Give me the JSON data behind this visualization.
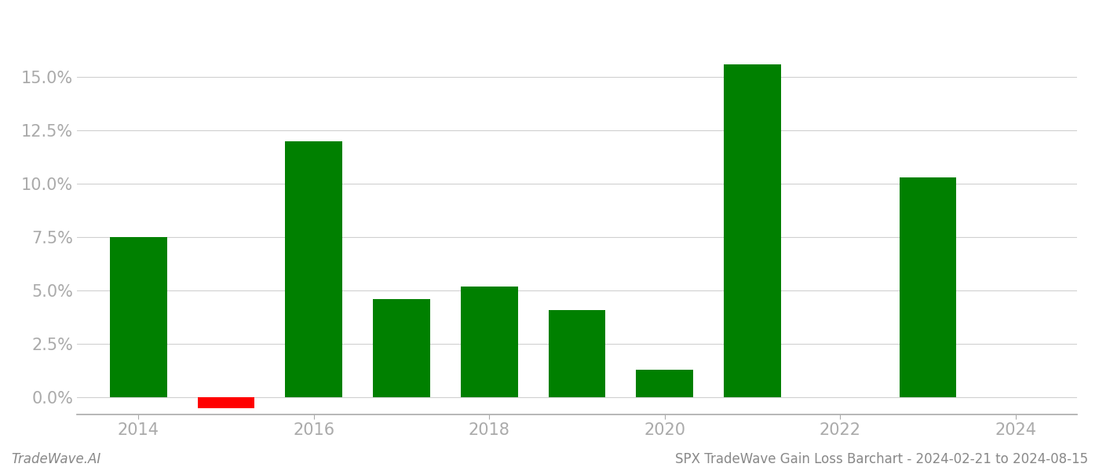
{
  "years": [
    2014,
    2015,
    2016,
    2017,
    2018,
    2019,
    2020,
    2021,
    2022,
    2023,
    2024
  ],
  "values": [
    0.075,
    -0.005,
    0.12,
    0.046,
    0.052,
    0.041,
    0.013,
    0.156,
    0.0,
    0.103,
    0.0
  ],
  "bar_colors": [
    "#008000",
    "#ff0000",
    "#008000",
    "#008000",
    "#008000",
    "#008000",
    "#008000",
    "#008000",
    "#008000",
    "#008000",
    "#008000"
  ],
  "has_bar": [
    true,
    true,
    true,
    true,
    true,
    true,
    true,
    true,
    false,
    true,
    false
  ],
  "footer_left": "TradeWave.AI",
  "footer_right": "SPX TradeWave Gain Loss Barchart - 2024-02-21 to 2024-08-15",
  "ylim": [
    -0.008,
    0.175
  ],
  "yticks": [
    0.0,
    0.025,
    0.05,
    0.075,
    0.1,
    0.125,
    0.15
  ],
  "background_color": "#ffffff",
  "grid_color": "#d0d0d0",
  "bar_width": 0.65,
  "axis_color": "#aaaaaa",
  "tick_color": "#aaaaaa",
  "font_size_ticks": 15,
  "font_size_footer": 12
}
